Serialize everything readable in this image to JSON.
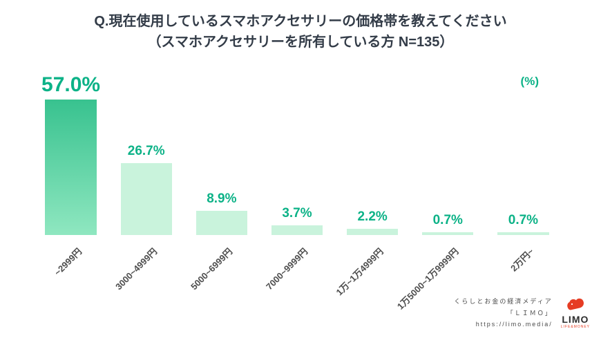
{
  "title": {
    "line1": "Q.現在使用しているスマホアクセサリーの価格帯を教えてください",
    "line2": "（スマホアクセサリーを所有している方 N=135）"
  },
  "chart_data": {
    "type": "bar",
    "title": "現在使用しているスマホアクセサリーの価格帯",
    "categories": [
      "~2999円",
      "3000~4999円",
      "5000~6999円",
      "7000~9999円",
      "1万~1万4999円",
      "1万5000~1万9999円",
      "2万円~"
    ],
    "values": [
      57.0,
      26.7,
      8.9,
      3.7,
      2.2,
      0.7,
      0.7
    ],
    "value_labels": [
      "57.0%",
      "26.7%",
      "8.9%",
      "3.7%",
      "2.2%",
      "0.7%",
      "0.7%"
    ],
    "unit_label": "(%)",
    "xlabel": "",
    "ylabel": "%",
    "ylim": [
      0,
      60
    ],
    "grid": false,
    "legend": "none",
    "bar_color": "#c9f3dc",
    "highlight_bar_gradient": [
      "#38c28f",
      "#8fe7c0"
    ],
    "value_label_color": "#0cb287",
    "tick_label_color": "#4d4d4d"
  },
  "footer": {
    "tagline": "くらしとお金の経済メディア",
    "brand_line": "「ＬＩＭＯ」",
    "url": "https://limo.media/",
    "logo_text": "LIMO",
    "logo_subtext": "LIFE&MONEY",
    "logo_color": "#e63c23"
  }
}
